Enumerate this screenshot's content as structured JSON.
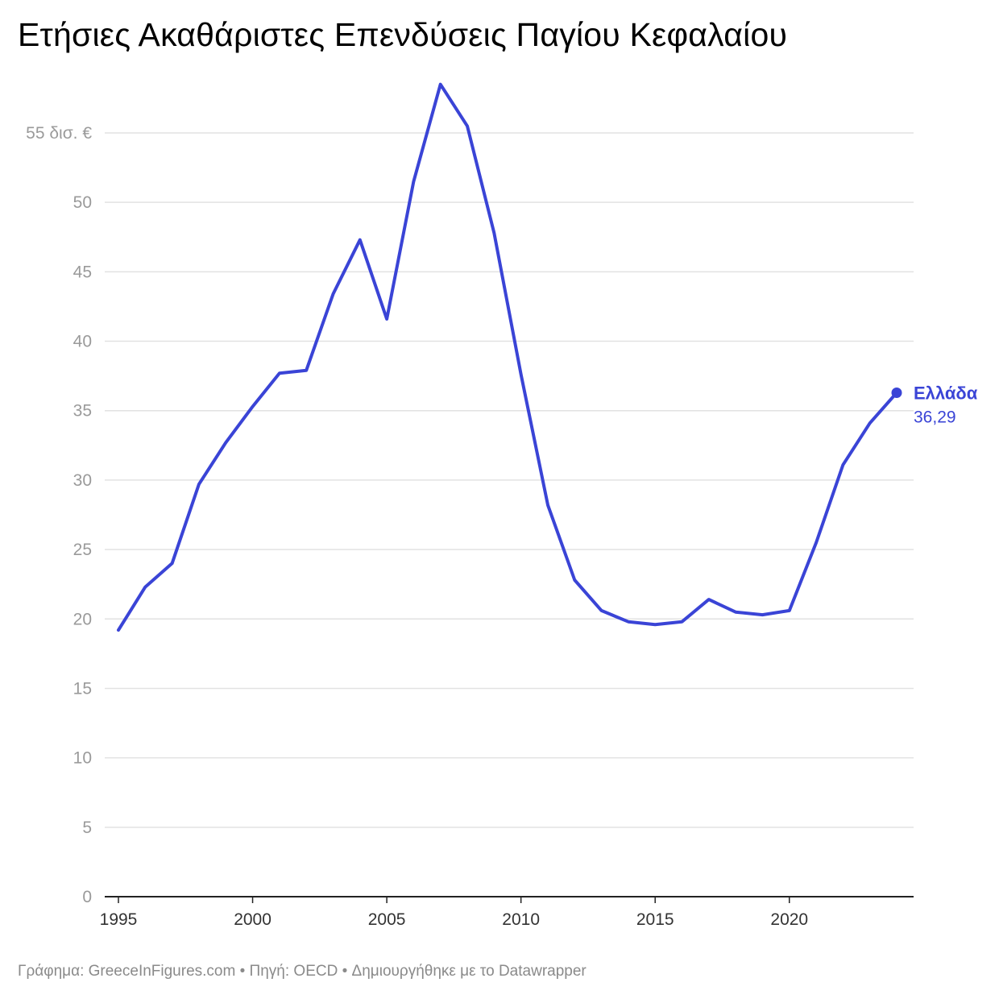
{
  "title": "Ετήσιες Ακαθάριστες Επενδύσεις Παγίου Κεφαλαίου",
  "footer": "Γράφημα: GreeceInFigures.com • Πηγή: OECD • Δημιουργήθηκε με το Datawrapper",
  "colors": {
    "series": "#3a44d6",
    "text": "#000000",
    "muted": "#9a9a9a",
    "grid": "#e2e2e2"
  },
  "chart_data": {
    "type": "line",
    "title": "Ετήσιες Ακαθάριστες Επενδύσεις Παγίου Κεφαλαίου",
    "xlabel": "",
    "ylabel": "",
    "xlim": [
      1995,
      2024
    ],
    "ylim": [
      0,
      55
    ],
    "x_ticks": [
      1995,
      2000,
      2005,
      2010,
      2015,
      2020
    ],
    "x_tick_labels": [
      "1995",
      "2000",
      "2005",
      "2010",
      "2015",
      "2020"
    ],
    "y_ticks": [
      0,
      5,
      10,
      15,
      20,
      25,
      30,
      35,
      40,
      45,
      50,
      55
    ],
    "y_tick_labels": [
      "0",
      "5",
      "10",
      "15",
      "20",
      "25",
      "30",
      "35",
      "40",
      "45",
      "50",
      "55 δισ. €"
    ],
    "grid": true,
    "series": [
      {
        "name": "Ελλάδα",
        "color": "#3a44d6",
        "x": [
          1995,
          1996,
          1997,
          1998,
          1999,
          2000,
          2001,
          2002,
          2003,
          2004,
          2005,
          2006,
          2007,
          2008,
          2009,
          2010,
          2011,
          2012,
          2013,
          2014,
          2015,
          2016,
          2017,
          2018,
          2019,
          2020,
          2021,
          2022,
          2023,
          2024
        ],
        "values": [
          19.2,
          22.3,
          24.0,
          29.7,
          32.7,
          35.3,
          37.7,
          37.9,
          43.4,
          47.3,
          41.6,
          51.5,
          58.5,
          55.5,
          47.8,
          37.6,
          28.2,
          22.8,
          20.6,
          19.8,
          19.6,
          19.8,
          21.4,
          20.5,
          20.3,
          20.6,
          25.5,
          31.1,
          34.1,
          36.29
        ],
        "end_label": "Ελλάδα",
        "end_value_label": "36,29"
      }
    ]
  }
}
